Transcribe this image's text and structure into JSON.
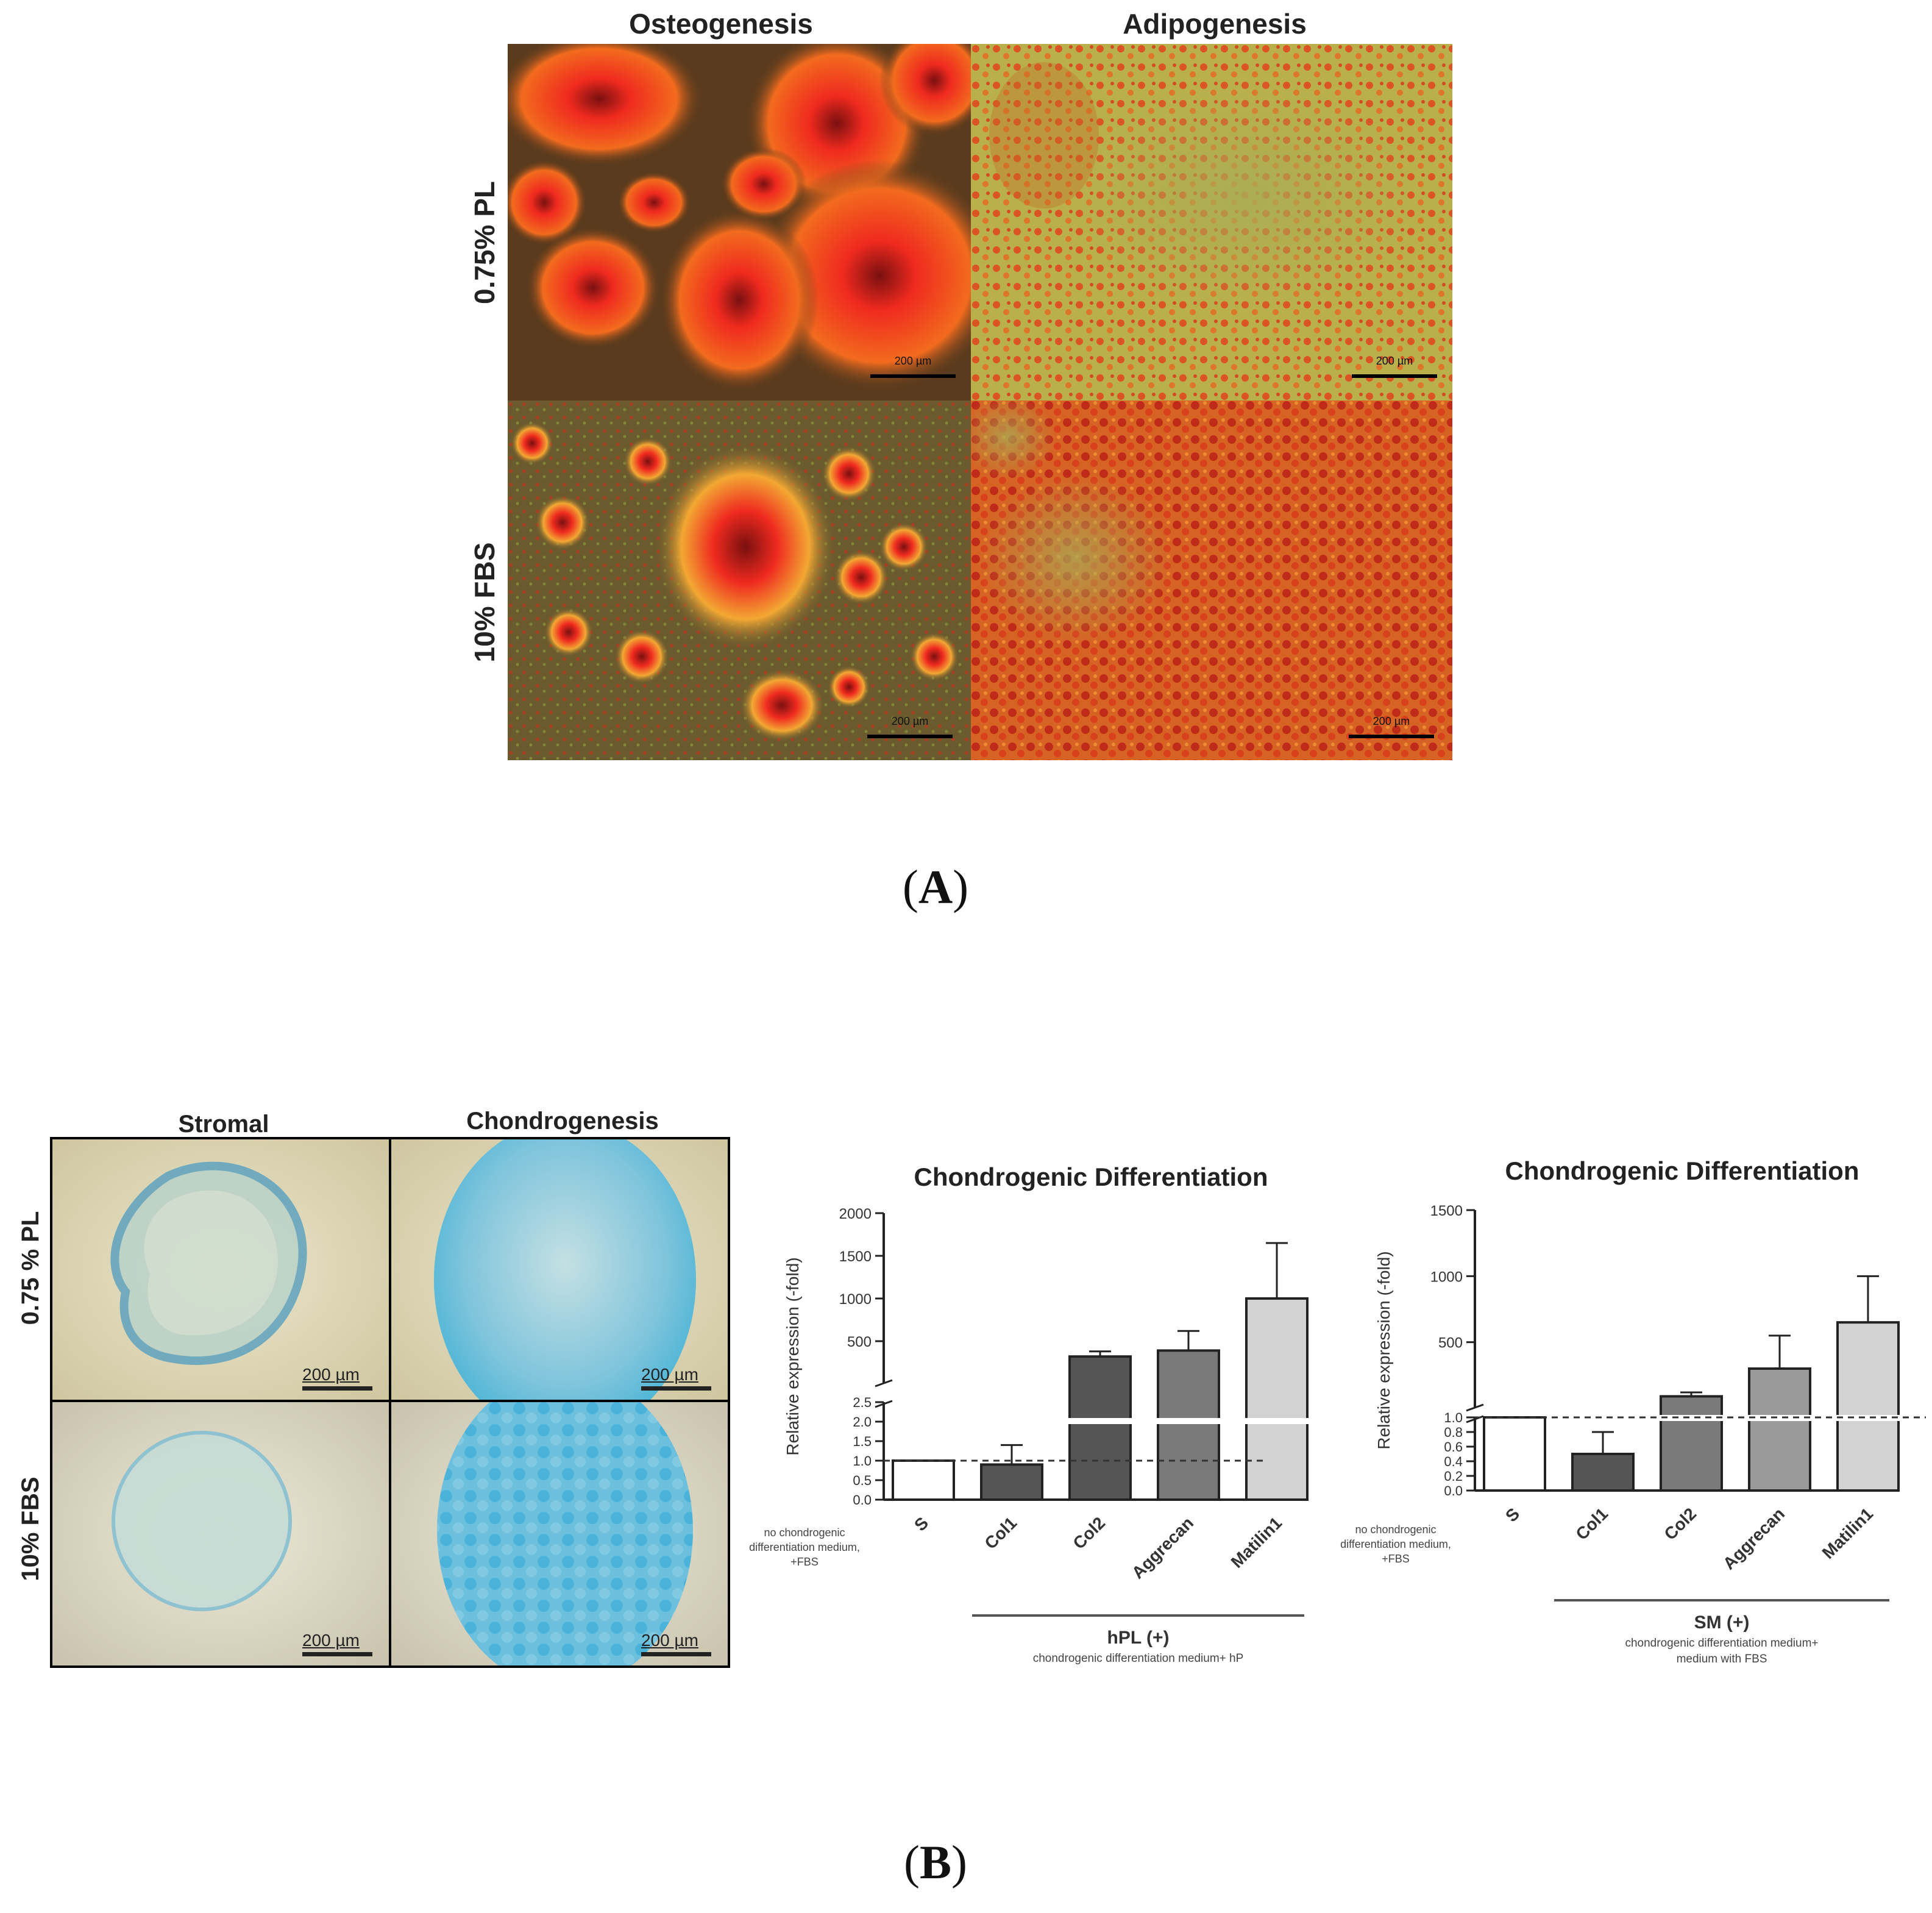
{
  "panel_a": {
    "label": "A",
    "columns": [
      "Osteogenesis",
      "Adipogenesis"
    ],
    "rows": [
      "0.75% PL",
      "10% FBS"
    ],
    "scale_label": "200 µm",
    "colors": {
      "osteo_bg": "#5a3a1c",
      "osteo_stain": "#e8261d",
      "adipo_bg": "#b8b04a",
      "adipo_stain": "#e0401c"
    }
  },
  "panel_b": {
    "label": "B",
    "image_columns": [
      "Stromal",
      "Chondrogenesis"
    ],
    "image_rows": [
      "0.75 % PL",
      "10% FBS"
    ],
    "scale_label": "200 µm",
    "colors": {
      "background": "#e9e3c4",
      "alcian_blue": "#4fb6d6"
    }
  },
  "chart_data": [
    {
      "type": "bar",
      "title": "Chondrogenic Differentiation",
      "ylabel": "Relative expression (-fold)",
      "categories": [
        "S",
        "Col1",
        "Col2",
        "Aggrecan",
        "Matilin1"
      ],
      "values": [
        1,
        0.9,
        320,
        390,
        1000
      ],
      "errors": [
        0,
        0.5,
        60,
        230,
        650
      ],
      "broken_axis": true,
      "y_lower_ticks": [
        "0.0",
        "0.5",
        "1.0",
        "1.5",
        "2.0",
        "2.5"
      ],
      "y_upper_ticks": [
        "500",
        "1000",
        "1500",
        "2000"
      ],
      "y_lower_range": [
        0,
        2.5
      ],
      "y_upper_range": [
        0,
        2000
      ],
      "reference_line": 1,
      "control_note": "no chondrogenic differentiation medium, +FBS",
      "group_label": "hPL (+)",
      "group_note": "chondrogenic differentiation medium+ hP",
      "bar_colors": [
        "#ffffff",
        "#555555",
        "#555555",
        "#7a7a7a",
        "#d2d2d2"
      ]
    },
    {
      "type": "bar",
      "title": "Chondrogenic Differentiation",
      "ylabel": "Relative expression (-fold)",
      "categories": [
        "S",
        "Col1",
        "Col2",
        "Aggrecan",
        "Matilin1"
      ],
      "values": [
        1,
        0.5,
        90,
        300,
        650
      ],
      "errors": [
        0,
        0.3,
        30,
        250,
        350
      ],
      "broken_axis": true,
      "y_lower_ticks": [
        "0.0",
        "0.2",
        "0.4",
        "0.6",
        "0.8",
        "1.0"
      ],
      "y_upper_ticks": [
        "500",
        "1000",
        "1500"
      ],
      "y_lower_range": [
        0,
        1.0
      ],
      "y_upper_range": [
        0,
        1500
      ],
      "reference_line": 1,
      "control_note": "no chondrogenic differentiation medium, +FBS",
      "group_label": "SM (+)",
      "group_note": "chondrogenic differentiation medium+ medium with FBS",
      "bar_colors": [
        "#ffffff",
        "#555555",
        "#7a7a7a",
        "#9a9a9a",
        "#d2d2d2"
      ]
    }
  ]
}
